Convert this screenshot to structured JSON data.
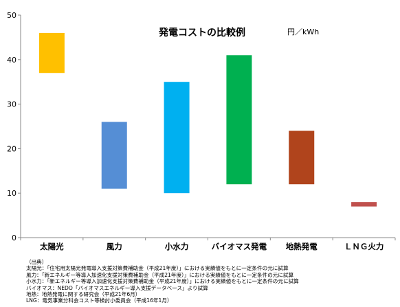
{
  "chart_data": {
    "type": "bar",
    "subtype": "floating-range",
    "title": "発電コストの比較例",
    "unit": "円／kWh",
    "ylim": [
      0,
      50
    ],
    "yticks": [
      0,
      10,
      20,
      30,
      40,
      50
    ],
    "grid": false,
    "categories": [
      "太陽光",
      "風力",
      "小水力",
      "バイオマス発電",
      "地熱発電",
      "ＬＮＧ火力"
    ],
    "ranges": [
      [
        37,
        46
      ],
      [
        11,
        26
      ],
      [
        10,
        35
      ],
      [
        12,
        41
      ],
      [
        12,
        24
      ],
      [
        7,
        8
      ]
    ],
    "colors": [
      "#ffc000",
      "#558ed5",
      "#00b0f0",
      "#00b050",
      "#b0441c",
      "#c0504d"
    ]
  },
  "notes": {
    "heading": "（出典）",
    "lines": [
      "太陽光：「住宅用太陽光発電導入支援対策費補助金（平成21年度）」における実績値をもとに一定条件の元に試算",
      "風力：「新エネルギー等導入加速化支援対策費補助金（平成21年度）」における実績値をもとに一定条件の元に試算",
      "小水力：「新エネルギー等導入加速化支援対策費補助金（平成21年度）」における実績値をもとに一定条件の元に試算",
      "バイオマス：NEDO「バイオマスエネルギー導入支援データベース」より試算",
      "地熱：地熱発電に関する研究会（平成21年6月）",
      "LNG：電気事業分科会コスト等検討小委員会（平成16年1月）"
    ]
  }
}
